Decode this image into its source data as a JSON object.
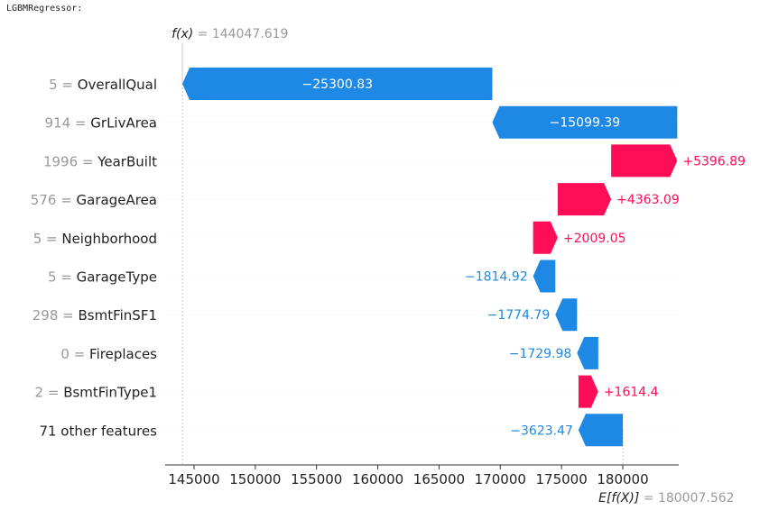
{
  "header": {
    "text": "LGBMRegressor:"
  },
  "chart_data": {
    "type": "bar",
    "variant": "shap-waterfall",
    "fx_label": "f(x)",
    "fx_value": "144047.619",
    "ex_label": "E[f(X)]",
    "ex_value": "180007.562",
    "base_value": 180007.562,
    "output_value": 144047.619,
    "xlim": [
      140000,
      185000
    ],
    "xticks": [
      145000,
      150000,
      155000,
      160000,
      165000,
      170000,
      175000,
      180000
    ],
    "colors": {
      "positive": "#ff0d57",
      "negative": "#1e88e5",
      "label_gray": "#999999"
    },
    "features": [
      {
        "value": "5",
        "name": "OverallQual",
        "contribution": -25300.83,
        "label": "−25300.83"
      },
      {
        "value": "914",
        "name": "GrLivArea",
        "contribution": -15099.39,
        "label": "−15099.39"
      },
      {
        "value": "1996",
        "name": "YearBuilt",
        "contribution": 5396.89,
        "label": "+5396.89"
      },
      {
        "value": "576",
        "name": "GarageArea",
        "contribution": 4363.09,
        "label": "+4363.09"
      },
      {
        "value": "5",
        "name": "Neighborhood",
        "contribution": 2009.05,
        "label": "+2009.05"
      },
      {
        "value": "5",
        "name": "GarageType",
        "contribution": -1814.92,
        "label": "−1814.92"
      },
      {
        "value": "298",
        "name": "BsmtFinSF1",
        "contribution": -1774.79,
        "label": "−1774.79"
      },
      {
        "value": "0",
        "name": "Fireplaces",
        "contribution": -1729.98,
        "label": "−1729.98"
      },
      {
        "value": "2",
        "name": "BsmtFinType1",
        "contribution": 1614.4,
        "label": "+1614.4"
      },
      {
        "value": "",
        "name": "71 other features",
        "contribution": -3623.47,
        "label": "−3623.47"
      }
    ]
  }
}
